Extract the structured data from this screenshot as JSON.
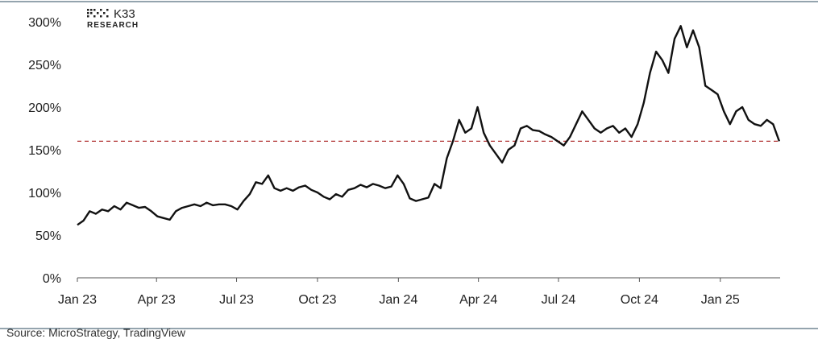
{
  "brand": {
    "name": "K33",
    "sub": "RESEARCH"
  },
  "source": "Source: MicroStrategy, TradingView",
  "chart_data": {
    "type": "line",
    "title": "",
    "xlabel": "",
    "ylabel": "",
    "ylim": [
      0,
      300
    ],
    "y_ticks": [
      {
        "value": 0,
        "label": "0%"
      },
      {
        "value": 50,
        "label": "50%"
      },
      {
        "value": 100,
        "label": "100%"
      },
      {
        "value": 150,
        "label": "150%"
      },
      {
        "value": 200,
        "label": "200%"
      },
      {
        "value": 250,
        "label": "250%"
      },
      {
        "value": 300,
        "label": "300%"
      }
    ],
    "x_range": [
      "2023-01-01",
      "2025-03-10"
    ],
    "x_ticks": [
      {
        "date": "2023-01-01",
        "label": "Jan 23"
      },
      {
        "date": "2023-04-01",
        "label": "Apr 23"
      },
      {
        "date": "2023-07-01",
        "label": "Jul 23"
      },
      {
        "date": "2023-10-01",
        "label": "Oct 23"
      },
      {
        "date": "2024-01-01",
        "label": "Jan 24"
      },
      {
        "date": "2024-04-01",
        "label": "Apr 24"
      },
      {
        "date": "2024-07-01",
        "label": "Jul 24"
      },
      {
        "date": "2024-10-01",
        "label": "Oct 24"
      },
      {
        "date": "2025-01-01",
        "label": "Jan 25"
      }
    ],
    "reference_line": {
      "value": 160,
      "style": "dashed",
      "color": "#b03030"
    },
    "grid": false,
    "series": [
      {
        "color": "#111111",
        "points": [
          [
            "2023-01-01",
            62
          ],
          [
            "2023-01-08",
            67
          ],
          [
            "2023-01-15",
            78
          ],
          [
            "2023-01-22",
            75
          ],
          [
            "2023-01-29",
            80
          ],
          [
            "2023-02-05",
            78
          ],
          [
            "2023-02-12",
            84
          ],
          [
            "2023-02-19",
            80
          ],
          [
            "2023-02-26",
            88
          ],
          [
            "2023-03-05",
            85
          ],
          [
            "2023-03-12",
            82
          ],
          [
            "2023-03-19",
            83
          ],
          [
            "2023-03-26",
            78
          ],
          [
            "2023-04-02",
            72
          ],
          [
            "2023-04-09",
            70
          ],
          [
            "2023-04-16",
            68
          ],
          [
            "2023-04-23",
            78
          ],
          [
            "2023-04-30",
            82
          ],
          [
            "2023-05-07",
            84
          ],
          [
            "2023-05-14",
            86
          ],
          [
            "2023-05-21",
            84
          ],
          [
            "2023-05-28",
            88
          ],
          [
            "2023-06-04",
            85
          ],
          [
            "2023-06-11",
            86
          ],
          [
            "2023-06-18",
            86
          ],
          [
            "2023-06-25",
            84
          ],
          [
            "2023-07-02",
            80
          ],
          [
            "2023-07-09",
            90
          ],
          [
            "2023-07-16",
            98
          ],
          [
            "2023-07-23",
            112
          ],
          [
            "2023-07-30",
            110
          ],
          [
            "2023-08-06",
            120
          ],
          [
            "2023-08-13",
            105
          ],
          [
            "2023-08-20",
            102
          ],
          [
            "2023-08-27",
            105
          ],
          [
            "2023-09-03",
            102
          ],
          [
            "2023-09-10",
            106
          ],
          [
            "2023-09-17",
            108
          ],
          [
            "2023-09-24",
            103
          ],
          [
            "2023-10-01",
            100
          ],
          [
            "2023-10-08",
            95
          ],
          [
            "2023-10-15",
            92
          ],
          [
            "2023-10-22",
            98
          ],
          [
            "2023-10-29",
            95
          ],
          [
            "2023-11-05",
            103
          ],
          [
            "2023-11-12",
            105
          ],
          [
            "2023-11-19",
            109
          ],
          [
            "2023-11-26",
            106
          ],
          [
            "2023-12-03",
            110
          ],
          [
            "2023-12-10",
            108
          ],
          [
            "2023-12-17",
            105
          ],
          [
            "2023-12-24",
            107
          ],
          [
            "2023-12-31",
            120
          ],
          [
            "2024-01-07",
            110
          ],
          [
            "2024-01-14",
            93
          ],
          [
            "2024-01-21",
            90
          ],
          [
            "2024-01-28",
            92
          ],
          [
            "2024-02-04",
            94
          ],
          [
            "2024-02-11",
            110
          ],
          [
            "2024-02-18",
            105
          ],
          [
            "2024-02-25",
            140
          ],
          [
            "2024-03-03",
            160
          ],
          [
            "2024-03-10",
            185
          ],
          [
            "2024-03-17",
            170
          ],
          [
            "2024-03-24",
            175
          ],
          [
            "2024-03-31",
            200
          ],
          [
            "2024-04-07",
            170
          ],
          [
            "2024-04-14",
            155
          ],
          [
            "2024-04-21",
            145
          ],
          [
            "2024-04-28",
            135
          ],
          [
            "2024-05-05",
            150
          ],
          [
            "2024-05-12",
            155
          ],
          [
            "2024-05-19",
            175
          ],
          [
            "2024-05-26",
            178
          ],
          [
            "2024-06-02",
            173
          ],
          [
            "2024-06-09",
            172
          ],
          [
            "2024-06-16",
            168
          ],
          [
            "2024-06-23",
            165
          ],
          [
            "2024-06-30",
            160
          ],
          [
            "2024-07-07",
            155
          ],
          [
            "2024-07-14",
            165
          ],
          [
            "2024-07-21",
            180
          ],
          [
            "2024-07-28",
            195
          ],
          [
            "2024-08-04",
            185
          ],
          [
            "2024-08-11",
            175
          ],
          [
            "2024-08-18",
            170
          ],
          [
            "2024-08-25",
            175
          ],
          [
            "2024-09-01",
            178
          ],
          [
            "2024-09-08",
            170
          ],
          [
            "2024-09-15",
            175
          ],
          [
            "2024-09-22",
            165
          ],
          [
            "2024-09-29",
            180
          ],
          [
            "2024-10-06",
            205
          ],
          [
            "2024-10-13",
            240
          ],
          [
            "2024-10-20",
            265
          ],
          [
            "2024-10-27",
            255
          ],
          [
            "2024-11-03",
            240
          ],
          [
            "2024-11-10",
            280
          ],
          [
            "2024-11-17",
            295
          ],
          [
            "2024-11-24",
            270
          ],
          [
            "2024-12-01",
            290
          ],
          [
            "2024-12-08",
            270
          ],
          [
            "2024-12-15",
            225
          ],
          [
            "2024-12-22",
            220
          ],
          [
            "2024-12-29",
            215
          ],
          [
            "2025-01-05",
            195
          ],
          [
            "2025-01-12",
            180
          ],
          [
            "2025-01-19",
            195
          ],
          [
            "2025-01-26",
            200
          ],
          [
            "2025-02-02",
            185
          ],
          [
            "2025-02-09",
            180
          ],
          [
            "2025-02-16",
            178
          ],
          [
            "2025-02-23",
            185
          ],
          [
            "2025-03-02",
            180
          ],
          [
            "2025-03-09",
            160
          ]
        ]
      }
    ]
  }
}
